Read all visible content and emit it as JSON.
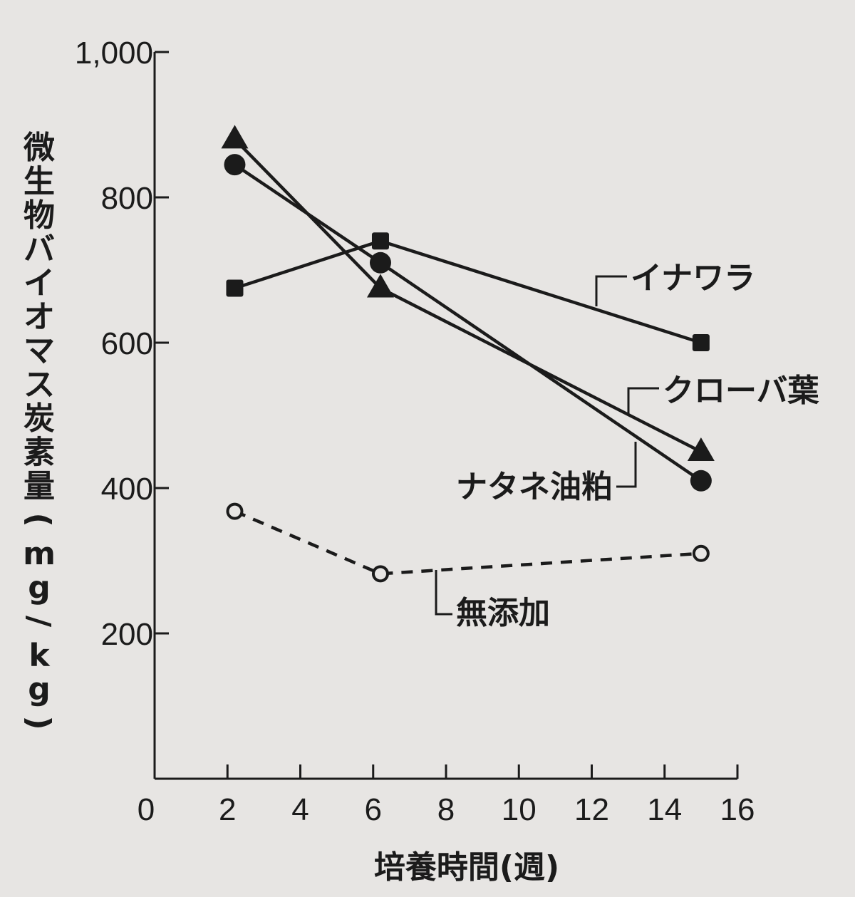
{
  "chart_data": {
    "type": "line",
    "title": "",
    "xlabel": "培養時間(週)",
    "ylabel": "微生物バイオマス炭素量(mg/kg)",
    "xlim": [
      0,
      16
    ],
    "ylim": [
      0,
      1000
    ],
    "x_ticks": [
      0,
      2,
      4,
      6,
      8,
      10,
      12,
      14,
      16
    ],
    "x_tick_labels": [
      "0",
      "2",
      "4",
      "6",
      "8",
      "10",
      "12",
      "14",
      "16"
    ],
    "y_ticks": [
      200,
      400,
      600,
      800,
      1000
    ],
    "y_tick_labels": [
      "200",
      "400",
      "600",
      "800",
      "1,000"
    ],
    "grid": false,
    "legend": "inline labels",
    "series": [
      {
        "name": "イナワラ",
        "marker": "square",
        "line_style": "solid",
        "x": [
          2.2,
          6.2,
          15
        ],
        "y": [
          675,
          740,
          600
        ]
      },
      {
        "name": "クローバ葉",
        "marker": "triangle",
        "line_style": "solid",
        "x": [
          2.2,
          6.2,
          15
        ],
        "y": [
          880,
          675,
          450
        ]
      },
      {
        "name": "ナタネ油粕",
        "marker": "circle",
        "line_style": "solid",
        "x": [
          2.2,
          6.2,
          15
        ],
        "y": [
          845,
          710,
          410
        ]
      },
      {
        "name": "無添加",
        "marker": "open-circle",
        "line_style": "dashed",
        "x": [
          2.2,
          6.2,
          15
        ],
        "y": [
          368,
          282,
          310
        ]
      }
    ]
  }
}
